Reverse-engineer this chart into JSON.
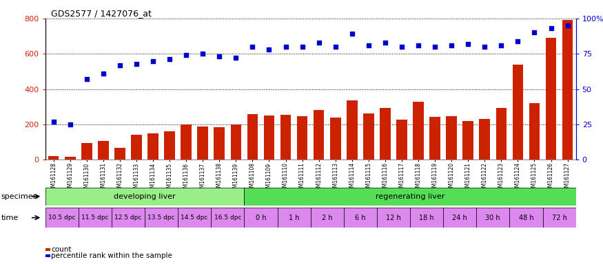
{
  "title": "GDS2577 / 1427076_at",
  "gsm_labels": [
    "GSM161128",
    "GSM161129",
    "GSM161130",
    "GSM161131",
    "GSM161132",
    "GSM161133",
    "GSM161134",
    "GSM161135",
    "GSM161136",
    "GSM161137",
    "GSM161138",
    "GSM161139",
    "GSM161108",
    "GSM161109",
    "GSM161110",
    "GSM161111",
    "GSM161112",
    "GSM161113",
    "GSM161114",
    "GSM161115",
    "GSM161116",
    "GSM161117",
    "GSM161118",
    "GSM161119",
    "GSM161120",
    "GSM161121",
    "GSM161122",
    "GSM161123",
    "GSM161124",
    "GSM161125",
    "GSM161126",
    "GSM161127"
  ],
  "count_values": [
    22,
    18,
    95,
    108,
    68,
    140,
    148,
    162,
    200,
    188,
    186,
    198,
    260,
    252,
    255,
    248,
    282,
    238,
    335,
    262,
    292,
    228,
    328,
    242,
    248,
    218,
    232,
    292,
    540,
    322,
    692,
    790
  ],
  "percentile_values": [
    27,
    25,
    57,
    61,
    67,
    68,
    70,
    71,
    74,
    75,
    73,
    72,
    80,
    78,
    80,
    80,
    83,
    80,
    89,
    81,
    83,
    80,
    81,
    80,
    81,
    82,
    80,
    81,
    84,
    90,
    93,
    95
  ],
  "bar_color": "#cc2200",
  "dot_color": "#0000cc",
  "bar_width": 0.65,
  "ylim_left": [
    0,
    800
  ],
  "ylim_right": [
    0,
    100
  ],
  "yticks_left": [
    0,
    200,
    400,
    600,
    800
  ],
  "yticks_right": [
    0,
    25,
    50,
    75,
    100
  ],
  "ytick_labels_right": [
    "0",
    "25",
    "50",
    "75",
    "100%"
  ],
  "grid_color": "#000000",
  "background_color": "#ffffff",
  "tick_area_color": "#dddddd",
  "specimen_developing_color": "#99ee88",
  "specimen_regenerating_color": "#55dd55",
  "time_cell_color": "#dd88ee",
  "specimen_developing_label": "developing liver",
  "specimen_regenerating_label": "regenerating liver",
  "time_labels_dpc": [
    "10.5 dpc",
    "11.5 dpc",
    "12.5 dpc",
    "13.5 dpc",
    "14.5 dpc",
    "16.5 dpc"
  ],
  "time_labels_regen": [
    "0 h",
    "1 h",
    "2 h",
    "6 h",
    "12 h",
    "18 h",
    "24 h",
    "30 h",
    "48 h",
    "72 h"
  ],
  "n_dpc": 12,
  "n_total": 32,
  "n_regen_groups": 10,
  "legend_items": [
    {
      "color": "#cc2200",
      "label": "count",
      "marker": "s"
    },
    {
      "color": "#0000cc",
      "label": "percentile rank within the sample",
      "marker": "s"
    }
  ],
  "specimen_label": "specimen",
  "time_label": "time"
}
